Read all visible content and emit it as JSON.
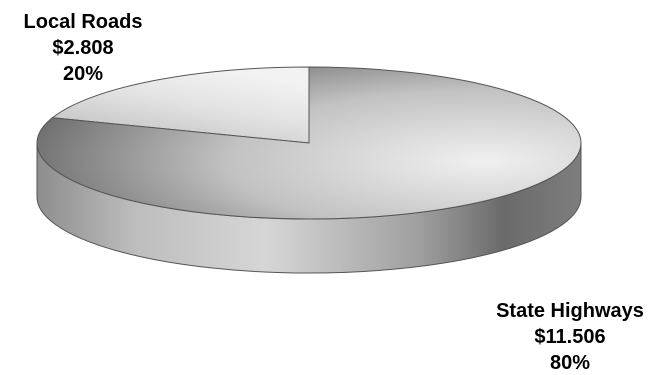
{
  "chart_data": {
    "type": "pie",
    "slices": [
      {
        "label": "Local Roads",
        "value": 2.808,
        "value_text": "$2.808",
        "percent_text": "20%"
      },
      {
        "label": "State Highways",
        "value": 11.506,
        "value_text": "$11.506",
        "percent_text": "80%"
      }
    ],
    "style": "3d-grayscale",
    "legend": "none"
  }
}
